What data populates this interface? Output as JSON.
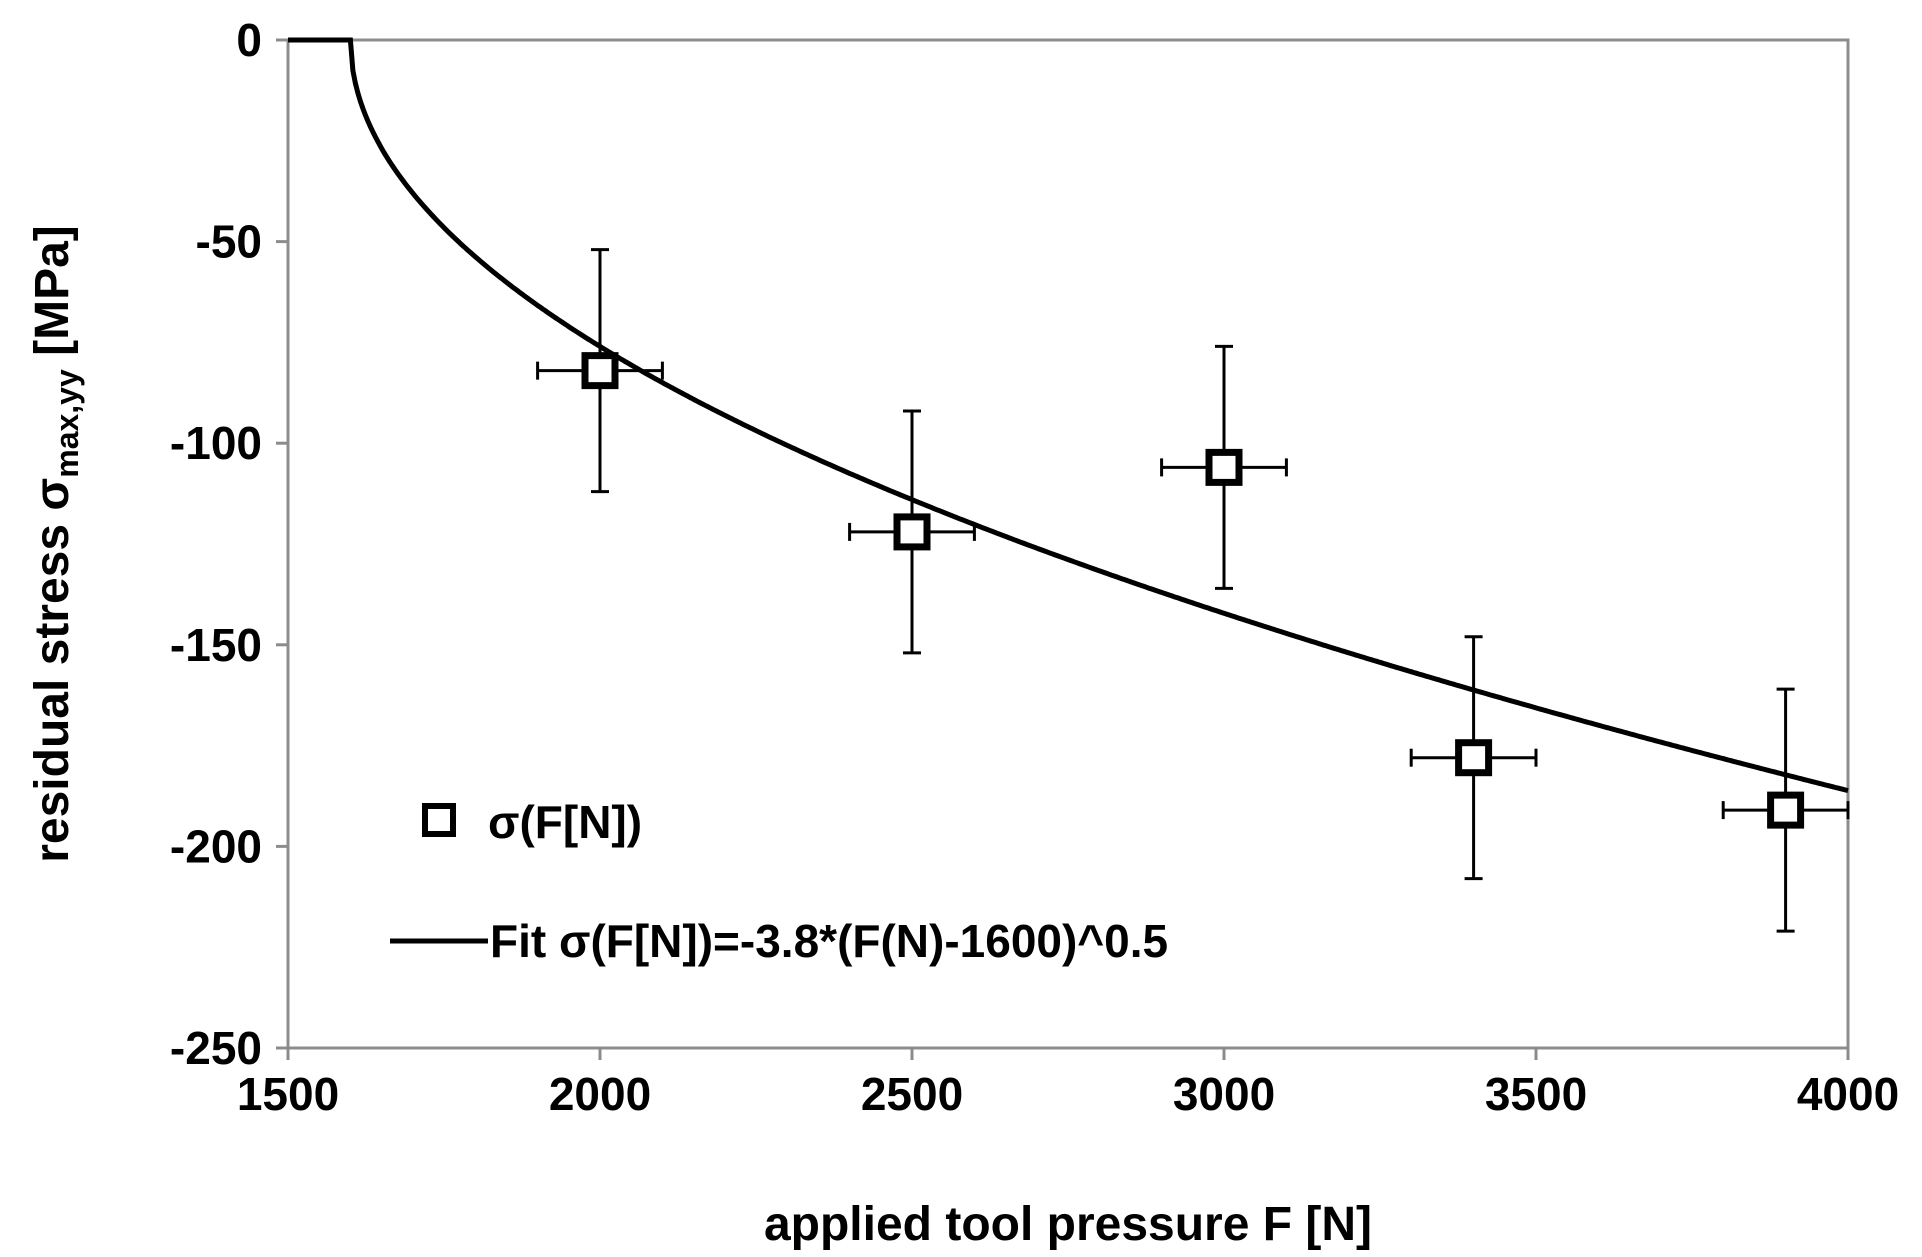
{
  "chart_data": {
    "type": "scatter",
    "xlabel": "applied tool pressure F [N]",
    "ylabel": {
      "main": "residual stress σ",
      "subscript": "max,yy",
      "unit": " [MPa]"
    },
    "xlim": [
      1500,
      4000
    ],
    "ylim": [
      -250,
      0
    ],
    "xticks": [
      "1500",
      "2000",
      "2500",
      "3000",
      "3500",
      "4000"
    ],
    "yticks": [
      "0",
      "-50",
      "-100",
      "-150",
      "-200",
      "-250"
    ],
    "grid": false,
    "legend_position": "bottom-left",
    "series": [
      {
        "name": "σ(F[N])",
        "kind": "scatter",
        "marker": "square",
        "points": [
          {
            "x": 2000,
            "y": -82,
            "xerr": 100,
            "yerr": 30
          },
          {
            "x": 2500,
            "y": -122,
            "xerr": 100,
            "yerr": 30
          },
          {
            "x": 3000,
            "y": -106,
            "xerr": 100,
            "yerr": 30
          },
          {
            "x": 3400,
            "y": -178,
            "xerr": 100,
            "yerr": 30
          },
          {
            "x": 3900,
            "y": -191,
            "xerr": 100,
            "yerr": 30
          }
        ]
      },
      {
        "name": "Fit σ(F[N])=-3.8*(F(N)-1600)^0.5",
        "kind": "line",
        "formula": {
          "coef": -3.8,
          "offset": 1600,
          "exponent": 0.5
        }
      }
    ]
  }
}
